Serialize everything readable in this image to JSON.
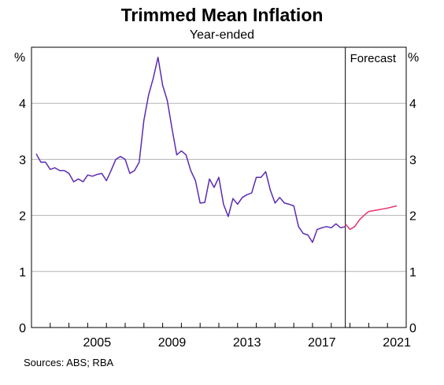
{
  "chart_data": {
    "type": "line",
    "title": "Trimmed Mean Inflation",
    "subtitle": "Year-ended",
    "ylabel_left": "%",
    "ylabel_right": "%",
    "ylim": [
      0,
      5
    ],
    "yticks": [
      0,
      1,
      2,
      3,
      4
    ],
    "xlim": [
      2002.0,
      2022.0
    ],
    "xticks": [
      2005,
      2009,
      2013,
      2017,
      2021
    ],
    "grid": true,
    "forecast_marker": {
      "x": 2018.75,
      "label": "Forecast"
    },
    "source": "Sources:   ABS; RBA",
    "series": [
      {
        "color": "#5b2bb3",
        "x": [
          2002.25,
          2002.5,
          2002.75,
          2003.0,
          2003.25,
          2003.5,
          2003.75,
          2004.0,
          2004.25,
          2004.5,
          2004.75,
          2005.0,
          2005.25,
          2005.5,
          2005.75,
          2006.0,
          2006.25,
          2006.5,
          2006.75,
          2007.0,
          2007.25,
          2007.5,
          2007.75,
          2008.0,
          2008.25,
          2008.5,
          2008.75,
          2009.0,
          2009.25,
          2009.5,
          2009.75,
          2010.0,
          2010.25,
          2010.5,
          2010.75,
          2011.0,
          2011.25,
          2011.5,
          2011.75,
          2012.0,
          2012.25,
          2012.5,
          2012.75,
          2013.0,
          2013.25,
          2013.5,
          2013.75,
          2014.0,
          2014.25,
          2014.5,
          2014.75,
          2015.0,
          2015.25,
          2015.5,
          2015.75,
          2016.0,
          2016.25,
          2016.5,
          2016.75,
          2017.0,
          2017.25,
          2017.5,
          2017.75,
          2018.0,
          2018.25,
          2018.5,
          2018.75
        ],
        "y": [
          3.1,
          2.95,
          2.95,
          2.82,
          2.85,
          2.8,
          2.8,
          2.75,
          2.6,
          2.65,
          2.6,
          2.72,
          2.7,
          2.73,
          2.75,
          2.62,
          2.8,
          3.0,
          3.05,
          3.0,
          2.75,
          2.8,
          2.95,
          3.7,
          4.15,
          4.45,
          4.82,
          4.32,
          4.05,
          3.55,
          3.08,
          3.15,
          3.08,
          2.8,
          2.62,
          2.22,
          2.23,
          2.65,
          2.5,
          2.68,
          2.2,
          1.98,
          2.3,
          2.2,
          2.32,
          2.37,
          2.4,
          2.68,
          2.68,
          2.78,
          2.45,
          2.22,
          2.32,
          2.22,
          2.2,
          2.17,
          1.8,
          1.68,
          1.65,
          1.52,
          1.75,
          1.78,
          1.8,
          1.78,
          1.85,
          1.78,
          1.8
        ]
      },
      {
        "color": "#e8336e",
        "x": [
          2018.75,
          2019.0,
          2019.25,
          2019.5,
          2019.75,
          2020.0,
          2020.5,
          2021.0,
          2021.5
        ],
        "y": [
          1.85,
          1.75,
          1.8,
          1.92,
          2.0,
          2.07,
          2.1,
          2.13,
          2.17
        ]
      }
    ]
  }
}
